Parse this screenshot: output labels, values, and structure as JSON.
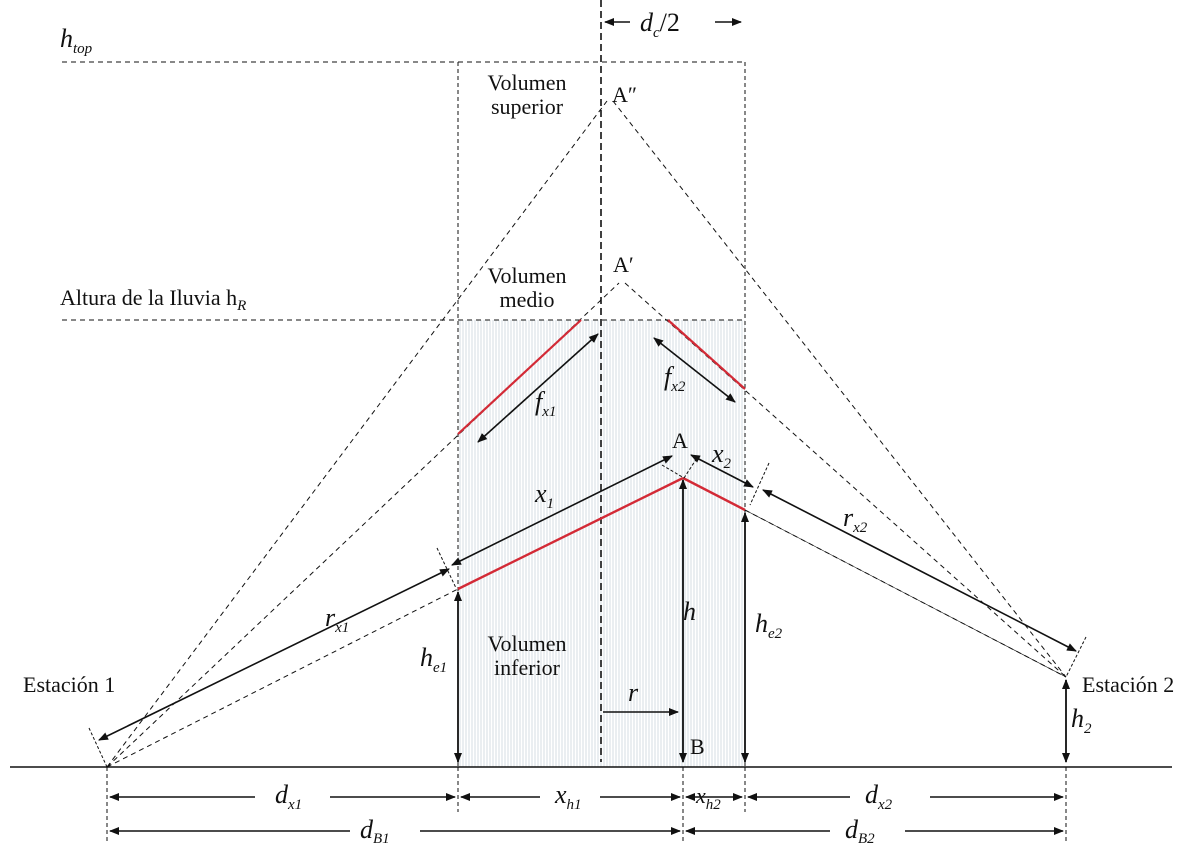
{
  "labels": {
    "h_top": "h",
    "h_top_sub": "top",
    "dc_half": "d",
    "dc_half_sub": "c",
    "dc_half_rest": "/2",
    "vol_sup_1": "Volumen",
    "vol_sup_2": "superior",
    "vol_mid_1": "Volumen",
    "vol_mid_2": "medio",
    "vol_inf_1": "Volumen",
    "vol_inf_2": "inferior",
    "rain_height": "Altura de la Iluvia h",
    "rain_height_sub": "R",
    "station1": "Estación 1",
    "station2": "Estación 2",
    "pt_A2": "A″",
    "pt_A1": "A′",
    "pt_A": "A",
    "pt_B": "B",
    "fx1": "f",
    "fx1_sub": "x1",
    "fx2": "f",
    "fx2_sub": "x2",
    "x1": "x",
    "x1_sub": "1",
    "x2": "x",
    "x2_sub": "2",
    "rx1": "r",
    "rx1_sub": "x1",
    "rx2": "r",
    "rx2_sub": "x2",
    "h": "h",
    "he1": "h",
    "he1_sub": "e1",
    "he2": "h",
    "he2_sub": "e2",
    "h2": "h",
    "h2_sub": "2",
    "r": "r",
    "dx1": "d",
    "dx1_sub": "x1",
    "xh1": "x",
    "xh1_sub": "h1",
    "xh2": "x",
    "xh2_sub": "h2",
    "dx2": "d",
    "dx2_sub": "x2",
    "dB1": "d",
    "dB1_sub": "B1",
    "dB2": "d",
    "dB2_sub": "B2"
  },
  "colors": {
    "ink": "#111111",
    "path_red": "#d32a36",
    "rain_hatch": "#c9d6dc"
  }
}
